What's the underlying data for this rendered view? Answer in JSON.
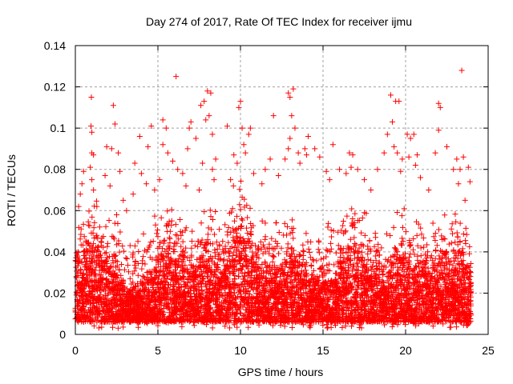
{
  "chart_data": {
    "type": "scatter",
    "title": "Day 274 of 2017, Rate Of TEC Index for receiver ijmu",
    "xlabel": "GPS time / hours",
    "ylabel": "ROTI / TECUs",
    "xlim": [
      0,
      25
    ],
    "ylim": [
      0,
      0.14
    ],
    "grid": true,
    "marker": "plus",
    "color": "#ff0000",
    "xticks": [
      "0",
      "5",
      "10",
      "15",
      "20",
      "25"
    ],
    "xtick_values": [
      0,
      5,
      10,
      15,
      20,
      25
    ],
    "yticks": [
      "0",
      "0.02",
      "0.04",
      "0.06",
      "0.08",
      "0.1",
      "0.12",
      "0.14"
    ],
    "ytick_values": [
      0,
      0.02,
      0.04,
      0.06,
      0.08,
      0.1,
      0.12,
      0.14
    ],
    "dense_band": {
      "bin_hours": 0.5,
      "lower": 0.006,
      "upper": [
        0.035,
        0.04,
        0.04,
        0.035,
        0.03,
        0.025,
        0.02,
        0.02,
        0.025,
        0.03,
        0.035,
        0.04,
        0.035,
        0.03,
        0.03,
        0.035,
        0.035,
        0.03,
        0.035,
        0.045,
        0.045,
        0.035,
        0.03,
        0.03,
        0.03,
        0.03,
        0.035,
        0.03,
        0.025,
        0.025,
        0.025,
        0.025,
        0.035,
        0.04,
        0.035,
        0.03,
        0.03,
        0.025,
        0.03,
        0.035,
        0.03,
        0.03,
        0.03,
        0.03,
        0.035,
        0.03,
        0.035,
        0.03
      ]
    },
    "points": [
      [
        0.97,
        0.115
      ],
      [
        0.95,
        0.101
      ],
      [
        1.0,
        0.098
      ],
      [
        1.0,
        0.088
      ],
      [
        1.1,
        0.087
      ],
      [
        0.9,
        0.081
      ],
      [
        1.0,
        0.075
      ],
      [
        0.5,
        0.079
      ],
      [
        0.3,
        0.068
      ],
      [
        0.4,
        0.073
      ],
      [
        1.1,
        0.07
      ],
      [
        0.2,
        0.062
      ],
      [
        1.3,
        0.062
      ],
      [
        2.3,
        0.111
      ],
      [
        2.4,
        0.102
      ],
      [
        1.9,
        0.091
      ],
      [
        2.2,
        0.09
      ],
      [
        2.6,
        0.088
      ],
      [
        1.8,
        0.077
      ],
      [
        2.7,
        0.079
      ],
      [
        2.1,
        0.072
      ],
      [
        2.9,
        0.065
      ],
      [
        2.5,
        0.058
      ],
      [
        3.1,
        0.06
      ],
      [
        3.9,
        0.096
      ],
      [
        4.4,
        0.091
      ],
      [
        4.6,
        0.101
      ],
      [
        3.6,
        0.083
      ],
      [
        4.0,
        0.078
      ],
      [
        4.3,
        0.073
      ],
      [
        3.5,
        0.068
      ],
      [
        4.8,
        0.07
      ],
      [
        5.3,
        0.104
      ],
      [
        5.5,
        0.1
      ],
      [
        5.3,
        0.092
      ],
      [
        5.6,
        0.088
      ],
      [
        5.9,
        0.084
      ],
      [
        6.1,
        0.125
      ],
      [
        6.2,
        0.08
      ],
      [
        5.1,
        0.075
      ],
      [
        6.5,
        0.078
      ],
      [
        6.8,
        0.09
      ],
      [
        6.9,
        0.1
      ],
      [
        7.0,
        0.103
      ],
      [
        6.7,
        0.072
      ],
      [
        7.3,
        0.095
      ],
      [
        7.6,
        0.111
      ],
      [
        7.8,
        0.113
      ],
      [
        8.0,
        0.118
      ],
      [
        8.2,
        0.117
      ],
      [
        8.1,
        0.106
      ],
      [
        7.9,
        0.104
      ],
      [
        8.3,
        0.097
      ],
      [
        7.7,
        0.083
      ],
      [
        8.5,
        0.085
      ],
      [
        8.3,
        0.08
      ],
      [
        8.4,
        0.075
      ],
      [
        7.5,
        0.07
      ],
      [
        9.2,
        0.101
      ],
      [
        9.6,
        0.087
      ],
      [
        9.8,
        0.083
      ],
      [
        9.9,
        0.11
      ],
      [
        10.0,
        0.113
      ],
      [
        10.1,
        0.1
      ],
      [
        10.2,
        0.092
      ],
      [
        10.5,
        0.097
      ],
      [
        10.6,
        0.1
      ],
      [
        10.3,
        0.088
      ],
      [
        9.4,
        0.075
      ],
      [
        10.8,
        0.078
      ],
      [
        11.3,
        0.073
      ],
      [
        11.5,
        0.08
      ],
      [
        12.0,
        0.106
      ],
      [
        11.8,
        0.085
      ],
      [
        12.3,
        0.077
      ],
      [
        12.7,
        0.085
      ],
      [
        12.9,
        0.117
      ],
      [
        13.0,
        0.115
      ],
      [
        13.2,
        0.119
      ],
      [
        13.1,
        0.106
      ],
      [
        13.0,
        0.095
      ],
      [
        12.9,
        0.09
      ],
      [
        13.3,
        0.1
      ],
      [
        13.5,
        0.088
      ],
      [
        13.6,
        0.083
      ],
      [
        13.9,
        0.09
      ],
      [
        14.1,
        0.096
      ],
      [
        14.0,
        0.087
      ],
      [
        14.5,
        0.09
      ],
      [
        14.8,
        0.086
      ],
      [
        15.2,
        0.079
      ],
      [
        15.4,
        0.075
      ],
      [
        15.6,
        0.092
      ],
      [
        16.0,
        0.08
      ],
      [
        16.4,
        0.078
      ],
      [
        16.6,
        0.088
      ],
      [
        16.8,
        0.087
      ],
      [
        16.7,
        0.081
      ],
      [
        17.1,
        0.08
      ],
      [
        17.5,
        0.075
      ],
      [
        17.9,
        0.07
      ],
      [
        18.3,
        0.08
      ],
      [
        18.7,
        0.088
      ],
      [
        18.9,
        0.097
      ],
      [
        19.1,
        0.116
      ],
      [
        19.2,
        0.103
      ],
      [
        19.4,
        0.113
      ],
      [
        19.6,
        0.113
      ],
      [
        19.3,
        0.091
      ],
      [
        19.5,
        0.088
      ],
      [
        19.8,
        0.085
      ],
      [
        19.7,
        0.079
      ],
      [
        20.1,
        0.097
      ],
      [
        20.3,
        0.095
      ],
      [
        20.5,
        0.097
      ],
      [
        20.2,
        0.086
      ],
      [
        20.6,
        0.082
      ],
      [
        20.7,
        0.087
      ],
      [
        20.9,
        0.076
      ],
      [
        21.4,
        0.07
      ],
      [
        21.8,
        0.088
      ],
      [
        22.0,
        0.112
      ],
      [
        22.1,
        0.11
      ],
      [
        22.0,
        0.099
      ],
      [
        22.5,
        0.091
      ],
      [
        22.9,
        0.08
      ],
      [
        23.1,
        0.085
      ],
      [
        23.3,
        0.08
      ],
      [
        23.4,
        0.128
      ],
      [
        23.5,
        0.086
      ],
      [
        23.2,
        0.073
      ],
      [
        23.8,
        0.081
      ],
      [
        23.9,
        0.074
      ],
      [
        23.6,
        0.065
      ]
    ]
  }
}
